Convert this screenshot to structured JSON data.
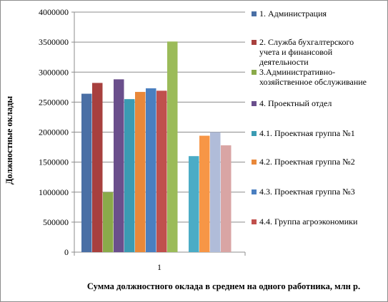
{
  "chart_data": {
    "type": "bar",
    "xlabel": "Сумма должностного оклада в среднем на одного работника, млн р.",
    "ylabel": "Должностные оклады",
    "ylim": [
      0,
      4000000
    ],
    "y_ticks": [
      "0",
      "500000",
      "1000000",
      "1500000",
      "2000000",
      "2500000",
      "3000000",
      "3500000",
      "4000000"
    ],
    "categories": [
      "1"
    ],
    "grid": true,
    "legend_position": "right",
    "groups": [
      {
        "category": "1",
        "series": [
          {
            "name": "1. Администрация",
            "value": 2640000,
            "color": "#4a6fa5"
          },
          {
            "name": "2. Служба бухгалтерского учета и финансовой деятельности",
            "value": 2820000,
            "color": "#a8403e"
          },
          {
            "name": "3.Административно-хозяйственное обслуживание",
            "value": 1000000,
            "color": "#8aaa4a"
          },
          {
            "name": "4. Проектный отдел",
            "value": 2880000,
            "color": "#6a4f8c"
          },
          {
            "name": "4.1. Проектная группа №1",
            "value": 2550000,
            "color": "#3b9bb3"
          },
          {
            "name": "4.2. Проектная группа №2",
            "value": 2670000,
            "color": "#e8883a"
          },
          {
            "name": "4.3. Проектная группа №3",
            "value": 2730000,
            "color": "#4a7fc0"
          },
          {
            "name": "4.4. Группа агроэкономики",
            "value": 2690000,
            "color": "#c0504d"
          },
          {
            "name": "",
            "value": 3510000,
            "color": "#9bbb59"
          }
        ]
      },
      {
        "category": "",
        "series": [
          {
            "name": "",
            "value": 1600000,
            "color": "#4bacc6"
          },
          {
            "name": "",
            "value": 1940000,
            "color": "#f79646"
          },
          {
            "name": "",
            "value": 2000000,
            "color": "#b0bcd9"
          },
          {
            "name": "",
            "value": 1780000,
            "color": "#d9a5a4"
          }
        ]
      }
    ],
    "legend": [
      {
        "label": "1. Администрация",
        "color": "#4a6fa5"
      },
      {
        "label": "2. Служба бухгалтерского учета и финансовой деятельности",
        "lines": [
          "2. Служба бухгалтерского",
          "учета и финансовой",
          "деятельности"
        ],
        "color": "#a8403e"
      },
      {
        "label": "3.Административно-хозяйственное обслуживание",
        "lines": [
          "3.Административно-",
          "хозяйственное обслуживание"
        ],
        "color": "#8aaa4a"
      },
      {
        "label": "4. Проектный отдел",
        "color": "#6a4f8c"
      },
      {
        "label": "4.1. Проектная группа №1",
        "color": "#3b9bb3"
      },
      {
        "label": "4.2. Проектная группа №2",
        "color": "#e8883a"
      },
      {
        "label": "4.3. Проектная группа №3",
        "color": "#4a7fc0"
      },
      {
        "label": "4.4. Группа агроэкономики",
        "color": "#c0504d"
      }
    ]
  }
}
